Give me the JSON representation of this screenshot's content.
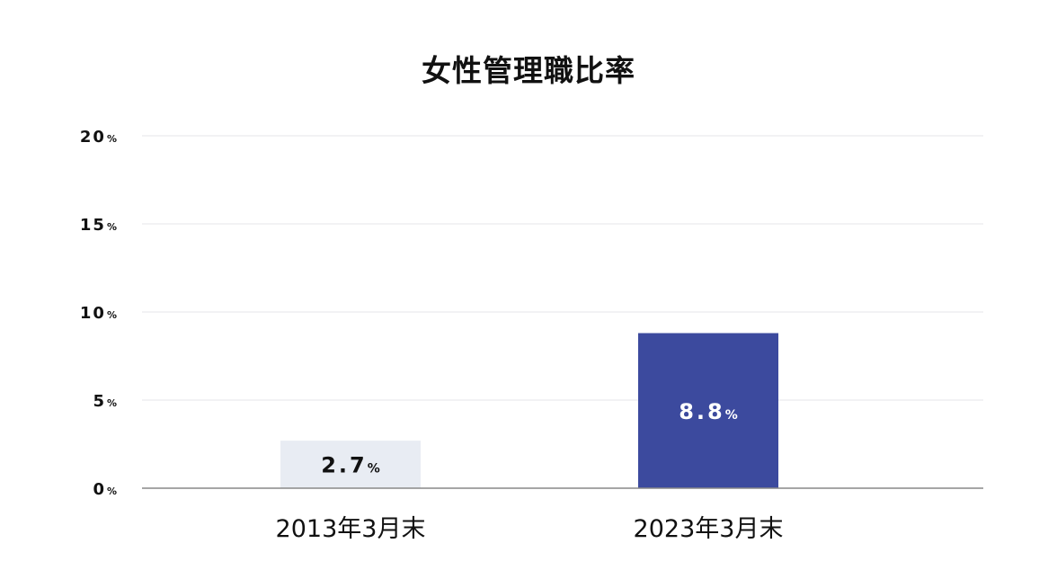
{
  "chart_data": {
    "type": "bar",
    "title": "女性管理職比率",
    "categories": [
      "2013年3月末",
      "2023年3月末"
    ],
    "values": [
      2.7,
      8.8
    ],
    "unit": "%",
    "value_labels": [
      "2.7",
      "8.8"
    ],
    "ylim": [
      0,
      20
    ],
    "yticks": [
      "0",
      "5",
      "10",
      "15",
      "20"
    ],
    "grid": true,
    "bar_colors": [
      "#e8ecf3",
      "#3c4a9e"
    ],
    "value_label_colors": [
      "#111111",
      "#ffffff"
    ]
  }
}
